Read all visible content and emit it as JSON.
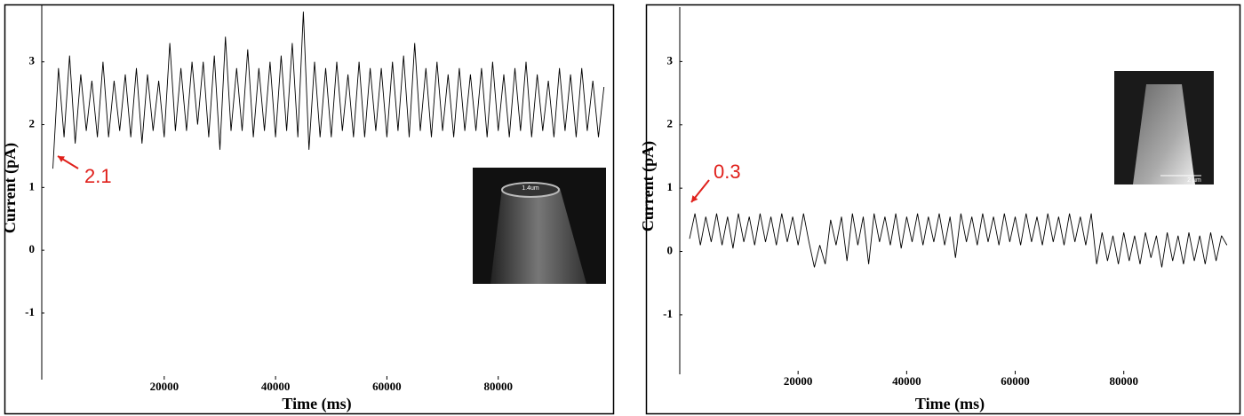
{
  "chart_data": [
    {
      "type": "line",
      "xlabel": "Time (ms)",
      "ylabel": "Current (pA)",
      "color": "#000000",
      "xlim": [
        -2000,
        100000
      ],
      "xticks": [
        20000,
        40000,
        60000,
        80000
      ],
      "ylim": [
        -2.06,
        3.9
      ],
      "yticks": [
        -1,
        0,
        1,
        2,
        3
      ],
      "annotation": {
        "text": "2.1",
        "color": "#e0201b"
      },
      "inset_label": "1.4um",
      "x": [
        0,
        1000,
        2000,
        3000,
        4000,
        5000,
        6000,
        7000,
        8000,
        9000,
        10000,
        11000,
        12000,
        13000,
        14000,
        15000,
        16000,
        17000,
        18000,
        19000,
        20000,
        21000,
        22000,
        23000,
        24000,
        25000,
        26000,
        27000,
        28000,
        29000,
        30000,
        31000,
        32000,
        33000,
        34000,
        35000,
        36000,
        37000,
        38000,
        39000,
        40000,
        41000,
        42000,
        43000,
        44000,
        45000,
        46000,
        47000,
        48000,
        49000,
        50000,
        51000,
        52000,
        53000,
        54000,
        55000,
        56000,
        57000,
        58000,
        59000,
        60000,
        61000,
        62000,
        63000,
        64000,
        65000,
        66000,
        67000,
        68000,
        69000,
        70000,
        71000,
        72000,
        73000,
        74000,
        75000,
        76000,
        77000,
        78000,
        79000,
        80000,
        81000,
        82000,
        83000,
        84000,
        85000,
        86000,
        87000,
        88000,
        89000,
        90000,
        91000,
        92000,
        93000,
        94000,
        95000,
        96000,
        97000,
        98000,
        99000
      ],
      "values": [
        1.3,
        2.9,
        1.8,
        3.1,
        1.7,
        2.8,
        1.9,
        2.7,
        1.8,
        3.0,
        1.8,
        2.7,
        1.9,
        2.8,
        1.8,
        2.9,
        1.7,
        2.8,
        1.9,
        2.7,
        1.8,
        3.3,
        1.9,
        2.9,
        1.9,
        3.0,
        2.0,
        3.0,
        1.8,
        3.1,
        1.6,
        3.4,
        1.9,
        2.9,
        1.9,
        3.2,
        1.8,
        2.9,
        1.9,
        3.0,
        1.8,
        3.1,
        1.9,
        3.3,
        1.8,
        3.8,
        1.6,
        3.0,
        1.8,
        2.9,
        1.8,
        3.0,
        1.9,
        2.8,
        1.8,
        3.0,
        1.8,
        2.9,
        1.9,
        2.9,
        1.8,
        3.0,
        1.9,
        3.1,
        1.8,
        3.3,
        1.9,
        2.9,
        1.8,
        3.0,
        1.9,
        2.8,
        1.8,
        2.9,
        1.9,
        2.8,
        1.9,
        2.9,
        1.8,
        3.0,
        1.9,
        2.8,
        1.8,
        2.9,
        1.9,
        3.0,
        1.8,
        2.8,
        1.9,
        2.7,
        1.8,
        2.9,
        1.9,
        2.8,
        1.8,
        2.9,
        1.9,
        2.7,
        1.8,
        2.6
      ]
    },
    {
      "type": "line",
      "xlabel": "Time (ms)",
      "ylabel": "Current (pA)",
      "color": "#000000",
      "xlim": [
        -1800,
        101000
      ],
      "xticks": [
        20000,
        40000,
        60000,
        80000
      ],
      "ylim": [
        -1.94,
        3.86
      ],
      "yticks": [
        -1,
        0,
        1,
        2,
        3
      ],
      "annotation": {
        "text": "0.3",
        "color": "#e0201b"
      },
      "inset_label": "2 µm",
      "x": [
        0,
        1000,
        2000,
        3000,
        4000,
        5000,
        6000,
        7000,
        8000,
        9000,
        10000,
        11000,
        12000,
        13000,
        14000,
        15000,
        16000,
        17000,
        18000,
        19000,
        20000,
        21000,
        22000,
        23000,
        24000,
        25000,
        26000,
        27000,
        28000,
        29000,
        30000,
        31000,
        32000,
        33000,
        34000,
        35000,
        36000,
        37000,
        38000,
        39000,
        40000,
        41000,
        42000,
        43000,
        44000,
        45000,
        46000,
        47000,
        48000,
        49000,
        50000,
        51000,
        52000,
        53000,
        54000,
        55000,
        56000,
        57000,
        58000,
        59000,
        60000,
        61000,
        62000,
        63000,
        64000,
        65000,
        66000,
        67000,
        68000,
        69000,
        70000,
        71000,
        72000,
        73000,
        74000,
        75000,
        76000,
        77000,
        78000,
        79000,
        80000,
        81000,
        82000,
        83000,
        84000,
        85000,
        86000,
        87000,
        88000,
        89000,
        90000,
        91000,
        92000,
        93000,
        94000,
        95000,
        96000,
        97000,
        98000,
        99000
      ],
      "values": [
        0.2,
        0.6,
        0.1,
        0.55,
        0.15,
        0.6,
        0.1,
        0.55,
        0.05,
        0.6,
        0.15,
        0.55,
        0.1,
        0.6,
        0.15,
        0.55,
        0.1,
        0.6,
        0.15,
        0.55,
        0.1,
        0.6,
        0.15,
        -0.25,
        0.1,
        -0.2,
        0.5,
        0.1,
        0.55,
        -0.15,
        0.6,
        0.1,
        0.55,
        -0.2,
        0.6,
        0.15,
        0.55,
        0.1,
        0.6,
        0.05,
        0.55,
        0.15,
        0.6,
        0.1,
        0.55,
        0.15,
        0.6,
        0.1,
        0.55,
        -0.1,
        0.6,
        0.15,
        0.55,
        0.1,
        0.6,
        0.15,
        0.55,
        0.1,
        0.6,
        0.15,
        0.55,
        0.1,
        0.6,
        0.15,
        0.55,
        0.1,
        0.6,
        0.15,
        0.55,
        0.1,
        0.6,
        0.15,
        0.55,
        0.1,
        0.6,
        -0.2,
        0.3,
        -0.15,
        0.25,
        -0.2,
        0.3,
        -0.15,
        0.25,
        -0.2,
        0.3,
        -0.1,
        0.25,
        -0.25,
        0.3,
        -0.15,
        0.25,
        -0.2,
        0.3,
        -0.15,
        0.25,
        -0.2,
        0.3,
        -0.15,
        0.25,
        0.1
      ]
    }
  ]
}
